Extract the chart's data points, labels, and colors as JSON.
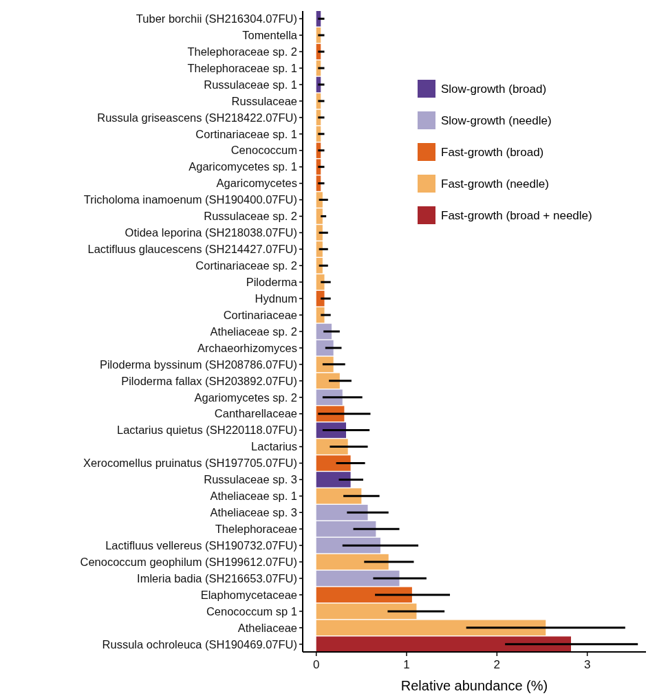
{
  "chart_data": {
    "type": "bar",
    "orientation": "horizontal",
    "stacked": true,
    "xlabel": "Relative abundance (%)",
    "categories": [
      "Tuber borchii (SH216304.07FU)",
      "Tomentella",
      "Thelephoraceae sp. 2",
      "Thelephoraceae sp. 1",
      "Russulaceae sp. 1",
      "Russulaceae",
      "Russula griseascens (SH218422.07FU)",
      "Cortinariaceae sp. 1",
      "Cenococcum",
      "Agaricomycetes sp. 1",
      "Agaricomycetes",
      "Tricholoma inamoenum (SH190400.07FU)",
      "Russulaceae sp. 2",
      "Otidea leporina (SH218038.07FU)",
      "Lactifluus glaucescens (SH214427.07FU)",
      "Cortinariaceae sp. 2",
      "Piloderma",
      "Hydnum",
      "Cortinariaceae",
      "Atheliaceae sp. 2",
      "Archaeorhizomyces",
      "Piloderma byssinum (SH208786.07FU)",
      "Piloderma fallax (SH203892.07FU)",
      "Agariomycetes sp. 2",
      "Cantharellaceae",
      "Lactarius quietus (SH220118.07FU)",
      "Lactarius",
      "Xerocomellus pruinatus (SH197705.07FU)",
      "Russulaceae sp. 3",
      "Atheliaceae sp. 1",
      "Atheliaceae sp. 3",
      "Thelephoraceae",
      "Lactifluus vellereus (SH190732.07FU)",
      "Cenococcum geophilum (SH199612.07FU)",
      "Imleria badia (SH216653.07FU)",
      "Elaphomycetaceae",
      "Cenococcum sp 1",
      "Atheliaceae",
      "Russula ochroleuca (SH190469.07FU)"
    ],
    "series": [
      {
        "name": "Slow-growth (broad)",
        "color": "#5a3d8f",
        "values": [
          0.05,
          null,
          null,
          null,
          0.05,
          null,
          null,
          null,
          null,
          null,
          null,
          null,
          null,
          null,
          null,
          null,
          null,
          null,
          null,
          null,
          null,
          null,
          null,
          null,
          null,
          0.33,
          null,
          null,
          0.38,
          null,
          null,
          null,
          null,
          null,
          null,
          null,
          null,
          null,
          null
        ],
        "errors": [
          [
            0.02,
            0.09
          ],
          null,
          null,
          null,
          [
            0.02,
            0.09
          ],
          null,
          null,
          null,
          null,
          null,
          null,
          null,
          null,
          null,
          null,
          null,
          null,
          null,
          null,
          null,
          null,
          null,
          null,
          null,
          null,
          [
            0.07,
            0.59
          ],
          null,
          null,
          [
            0.25,
            0.52
          ],
          null,
          null,
          null,
          null,
          null,
          null,
          null,
          null,
          null,
          null
        ]
      },
      {
        "name": "Slow-growth (needle)",
        "color": "#aaa5cc",
        "values": [
          null,
          null,
          null,
          null,
          null,
          null,
          null,
          null,
          null,
          null,
          null,
          null,
          null,
          null,
          null,
          null,
          null,
          null,
          null,
          0.17,
          0.19,
          null,
          null,
          0.29,
          null,
          null,
          null,
          null,
          null,
          null,
          0.57,
          0.66,
          0.71,
          null,
          0.92,
          null,
          null,
          null,
          null
        ],
        "errors": [
          null,
          null,
          null,
          null,
          null,
          null,
          null,
          null,
          null,
          null,
          null,
          null,
          null,
          null,
          null,
          null,
          null,
          null,
          null,
          [
            0.08,
            0.26
          ],
          [
            0.1,
            0.28
          ],
          null,
          null,
          [
            0.07,
            0.51
          ],
          null,
          null,
          null,
          null,
          null,
          null,
          [
            0.34,
            0.8
          ],
          [
            0.41,
            0.92
          ],
          [
            0.29,
            1.13
          ],
          null,
          [
            0.63,
            1.22
          ],
          null,
          null,
          null,
          null
        ]
      },
      {
        "name": "Fast-growth (broad)",
        "color": "#e0621c",
        "values": [
          null,
          null,
          0.05,
          null,
          null,
          null,
          null,
          null,
          0.05,
          0.05,
          0.05,
          null,
          null,
          null,
          null,
          null,
          null,
          0.09,
          null,
          null,
          null,
          null,
          null,
          null,
          0.31,
          null,
          null,
          0.38,
          null,
          null,
          null,
          null,
          null,
          null,
          null,
          1.06,
          null,
          null,
          null
        ],
        "errors": [
          null,
          null,
          [
            0.02,
            0.09
          ],
          null,
          null,
          null,
          null,
          null,
          [
            0.02,
            0.09
          ],
          [
            0.02,
            0.09
          ],
          [
            0.02,
            0.09
          ],
          null,
          null,
          null,
          null,
          null,
          null,
          [
            0.05,
            0.16
          ],
          null,
          null,
          null,
          null,
          null,
          null,
          [
            0.02,
            0.6
          ],
          null,
          null,
          [
            0.22,
            0.54
          ],
          null,
          null,
          null,
          null,
          null,
          null,
          null,
          [
            0.65,
            1.48
          ],
          null,
          null,
          null
        ]
      },
      {
        "name": "Fast-growth (needle)",
        "color": "#f4b262",
        "values": [
          null,
          0.05,
          null,
          0.05,
          null,
          0.05,
          0.05,
          0.05,
          null,
          null,
          null,
          0.07,
          0.07,
          0.07,
          0.07,
          0.07,
          0.09,
          null,
          0.09,
          null,
          null,
          0.19,
          0.26,
          null,
          null,
          null,
          0.35,
          null,
          null,
          0.5,
          null,
          null,
          null,
          0.8,
          null,
          null,
          1.11,
          2.54,
          null
        ],
        "errors": [
          null,
          [
            0.02,
            0.09
          ],
          null,
          [
            0.02,
            0.09
          ],
          null,
          [
            0.02,
            0.09
          ],
          [
            0.02,
            0.09
          ],
          [
            0.02,
            0.09
          ],
          null,
          null,
          null,
          [
            0.03,
            0.13
          ],
          [
            0.05,
            0.11
          ],
          [
            0.03,
            0.13
          ],
          [
            0.03,
            0.13
          ],
          [
            0.03,
            0.13
          ],
          [
            0.05,
            0.16
          ],
          null,
          [
            0.05,
            0.16
          ],
          null,
          null,
          [
            0.07,
            0.32
          ],
          [
            0.14,
            0.39
          ],
          null,
          null,
          null,
          [
            0.15,
            0.57
          ],
          null,
          null,
          [
            0.3,
            0.7
          ],
          null,
          null,
          null,
          [
            0.53,
            1.08
          ],
          null,
          null,
          [
            0.79,
            1.42
          ],
          [
            1.66,
            3.42
          ],
          null
        ]
      },
      {
        "name": "Fast-growth (broad + needle)",
        "color": "#a8262c",
        "values": [
          null,
          null,
          null,
          null,
          null,
          null,
          null,
          null,
          null,
          null,
          null,
          null,
          null,
          null,
          null,
          null,
          null,
          null,
          null,
          null,
          null,
          null,
          null,
          null,
          null,
          null,
          null,
          null,
          null,
          null,
          null,
          null,
          null,
          null,
          null,
          null,
          null,
          null,
          2.82
        ],
        "errors": [
          null,
          null,
          null,
          null,
          null,
          null,
          null,
          null,
          null,
          null,
          null,
          null,
          null,
          null,
          null,
          null,
          null,
          null,
          null,
          null,
          null,
          null,
          null,
          null,
          null,
          null,
          null,
          null,
          null,
          null,
          null,
          null,
          null,
          null,
          null,
          null,
          null,
          null,
          [
            2.09,
            3.56
          ]
        ]
      }
    ],
    "xlim": [
      -0.15,
      3.65
    ],
    "xticks": [
      0,
      1,
      2,
      3
    ],
    "legend": "top right"
  }
}
